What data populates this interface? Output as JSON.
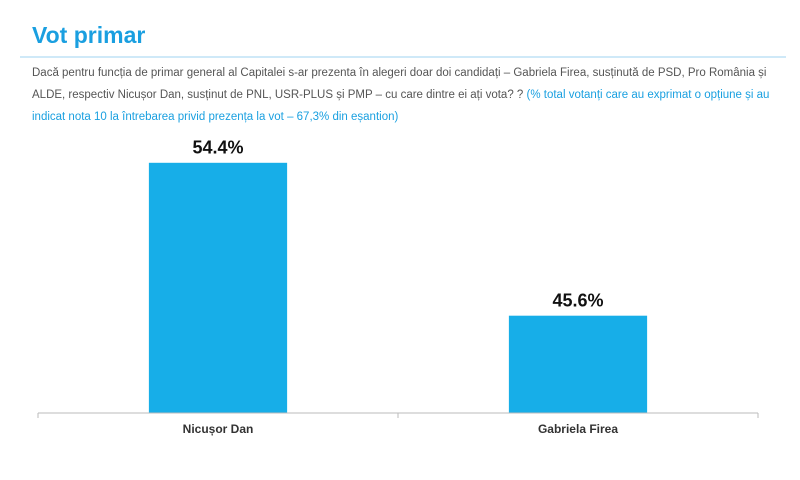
{
  "chart_data": {
    "type": "bar",
    "title": "Vot primar",
    "subtitle": "Dacă pentru funcția de primar general al Capitalei s-ar prezenta în alegeri doar doi candidați – Gabriela Firea, susținută de PSD, Pro România și ALDE, respectiv Nicușor Dan, susținut de PNL, USR-PLUS și PMP – cu care dintre ei ați vota? ?",
    "note": "(% total votanți care au exprimat o opțiune și au indicat nota 10 la întrebarea privid prezența la vot – 67,3% din eșantion)",
    "categories": [
      "Nicușor Dan",
      "Gabriela Firea"
    ],
    "values": [
      54.4,
      45.6
    ],
    "value_labels": [
      "54.4%",
      "45.6%"
    ],
    "color": "#17aee8",
    "ylim": [
      40,
      56
    ]
  }
}
